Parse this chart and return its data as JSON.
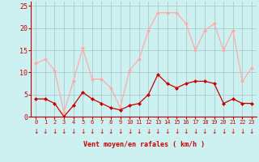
{
  "hours": [
    0,
    1,
    2,
    3,
    4,
    5,
    6,
    7,
    8,
    9,
    10,
    11,
    12,
    13,
    14,
    15,
    16,
    17,
    18,
    19,
    20,
    21,
    22,
    23
  ],
  "vent_moyen": [
    4,
    4,
    3,
    0,
    2.5,
    5.5,
    4,
    3,
    2,
    1.5,
    2.5,
    3,
    5,
    9.5,
    7.5,
    6.5,
    7.5,
    8,
    8,
    7.5,
    3,
    4,
    3,
    3
  ],
  "rafales": [
    12,
    13,
    10.5,
    1,
    8,
    15.5,
    8.5,
    8.5,
    6.5,
    2,
    10.5,
    13,
    19.5,
    23.5,
    23.5,
    23.5,
    21,
    15,
    19.5,
    21,
    15,
    19.5,
    8,
    11
  ],
  "color_moyen": "#cc0000",
  "color_rafales": "#ffaaaa",
  "background": "#cdf0f0",
  "grid_color": "#aacccc",
  "xlabel": "Vent moyen/en rafales ( km/h )",
  "ylim": [
    0,
    26
  ],
  "yticks": [
    0,
    5,
    10,
    15,
    20,
    25
  ],
  "marker_size": 2.5,
  "line_width": 0.9
}
